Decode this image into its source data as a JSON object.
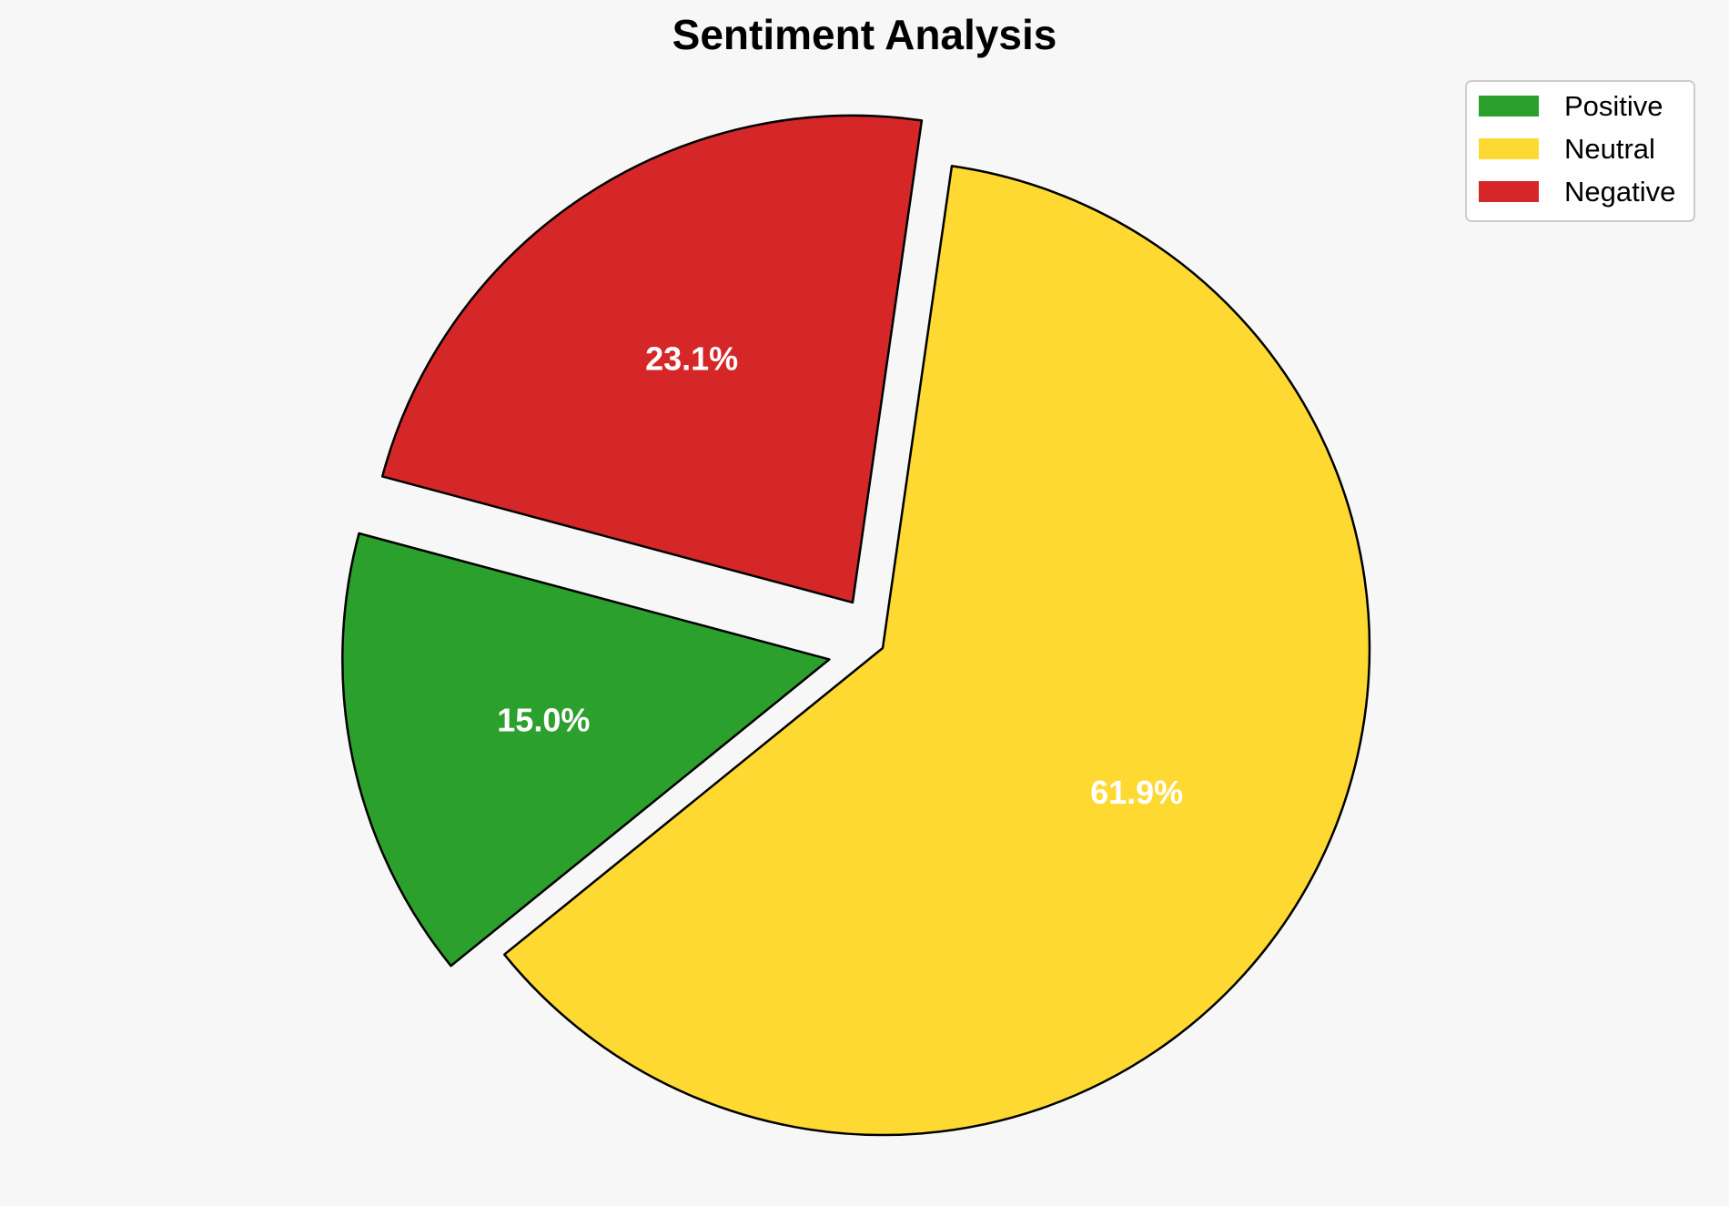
{
  "chart_data": {
    "type": "pie",
    "title": "Sentiment Analysis",
    "categories": [
      "Positive",
      "Neutral",
      "Negative"
    ],
    "values": [
      15.0,
      61.9,
      23.1
    ],
    "labels": [
      "15.0%",
      "61.9%",
      "23.1%"
    ],
    "colors": [
      "#2ca02c",
      "#fdd932",
      "#d62728"
    ],
    "exploded": [
      "Positive",
      "Negative"
    ],
    "edge_color": "#000000",
    "legend": {
      "placement": "top-right",
      "entries": [
        "Positive",
        "Neutral",
        "Negative"
      ]
    }
  },
  "background_color": "#f7f7f7"
}
